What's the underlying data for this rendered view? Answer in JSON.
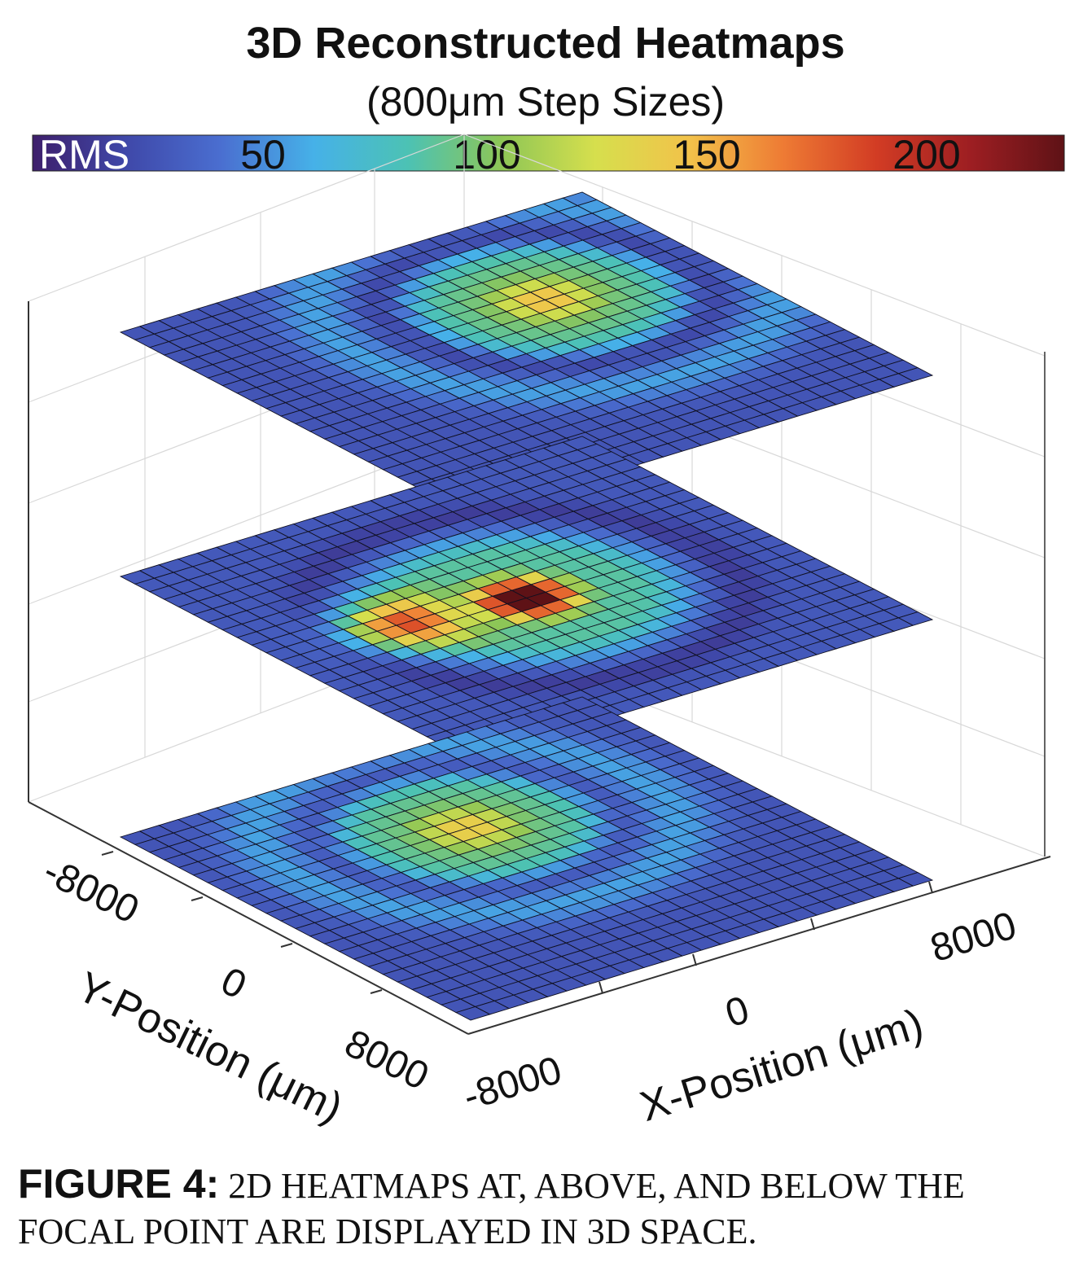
{
  "chart_data": {
    "type": "heatmap",
    "title": "3D Reconstructed Heatmaps",
    "subtitle": "(800μm Step Sizes)",
    "xlabel": "X-Position (μm)",
    "ylabel": "Y-Position (μm)",
    "x_ticks": [
      "-8000",
      "0",
      "8000"
    ],
    "y_ticks": [
      "-8000",
      "0",
      "8000"
    ],
    "xlim": [
      -9600,
      9600
    ],
    "ylim": [
      -9600,
      9600
    ],
    "step_um": 800,
    "grid": true,
    "colorbar": {
      "label": "RMS",
      "ticks": [
        "50",
        "100",
        "150",
        "200"
      ],
      "range": [
        0,
        230
      ],
      "colormap": [
        "#3e1f6b",
        "#3f48a9",
        "#4a6ed0",
        "#46b1e8",
        "#4cc2b4",
        "#8ec656",
        "#d6df4d",
        "#f2c24a",
        "#ee7b34",
        "#d23c24",
        "#9d1e22",
        "#5e1216"
      ]
    },
    "layers": [
      {
        "position": "above focal point",
        "peak": 120,
        "center": [
          3200,
          -3200
        ],
        "ring_radius": 7000
      },
      {
        "position": "at focal point",
        "peak": 230,
        "center": [
          0,
          0
        ],
        "secondary_lobe": 140,
        "secondary_center": [
          -4800,
          -800
        ]
      },
      {
        "position": "below focal point",
        "peak": 115,
        "center": [
          0,
          -3200
        ],
        "ring_radius": 6400
      }
    ]
  },
  "caption": {
    "label": "FIGURE 4:",
    "text": " 2D HEATMAPS AT, ABOVE, AND BELOW THE FOCAL POINT ARE DISPLAYED IN 3D SPACE."
  }
}
